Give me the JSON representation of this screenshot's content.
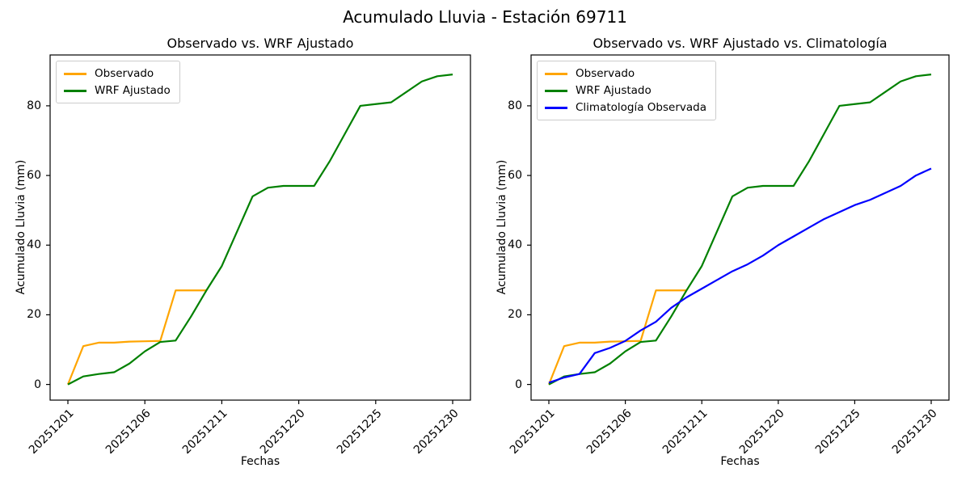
{
  "figure": {
    "title": "Acumulado Lluvia - Estación 69711"
  },
  "chart_data": [
    {
      "type": "line",
      "title": "Observado vs. WRF Ajustado",
      "xlabel": "Fechas",
      "ylabel": "Acumulado Lluvia (mm)",
      "x_ticks": [
        {
          "index": 0,
          "label": "20251201"
        },
        {
          "index": 5,
          "label": "20251206"
        },
        {
          "index": 10,
          "label": "20251211"
        },
        {
          "index": 15,
          "label": "20251220"
        },
        {
          "index": 20,
          "label": "20251225"
        },
        {
          "index": 25,
          "label": "20251230"
        }
      ],
      "y_ticks": [
        0,
        20,
        40,
        60,
        80
      ],
      "ylim": [
        -4.5,
        94.6
      ],
      "x_index_range": [
        0,
        25
      ],
      "grid": false,
      "legend_position": "upper-left",
      "series": [
        {
          "name": "Observado",
          "color": "#ffa500",
          "values": [
            0,
            11,
            12,
            12,
            12.3,
            12.4,
            12.5,
            27,
            27,
            27
          ]
        },
        {
          "name": "WRF Ajustado",
          "color": "#008000",
          "values": [
            0,
            2.3,
            3,
            3.5,
            6,
            9.5,
            12.2,
            12.6,
            19.5,
            27,
            34,
            44,
            54,
            56.5,
            57,
            57,
            57,
            64,
            72,
            80,
            80.5,
            81,
            84,
            87,
            88.5,
            89
          ]
        }
      ]
    },
    {
      "type": "line",
      "title": "Observado vs. WRF Ajustado vs. Climatología",
      "xlabel": "Fechas",
      "ylabel": "Acumulado Lluvia (mm)",
      "x_ticks": [
        {
          "index": 0,
          "label": "20251201"
        },
        {
          "index": 5,
          "label": "20251206"
        },
        {
          "index": 10,
          "label": "20251211"
        },
        {
          "index": 15,
          "label": "20251220"
        },
        {
          "index": 20,
          "label": "20251225"
        },
        {
          "index": 25,
          "label": "20251230"
        }
      ],
      "y_ticks": [
        0,
        20,
        40,
        60,
        80
      ],
      "ylim": [
        -4.5,
        94.6
      ],
      "x_index_range": [
        0,
        25
      ],
      "grid": false,
      "legend_position": "upper-left",
      "series": [
        {
          "name": "Observado",
          "color": "#ffa500",
          "values": [
            0,
            11,
            12,
            12,
            12.3,
            12.4,
            12.5,
            27,
            27,
            27
          ]
        },
        {
          "name": "WRF Ajustado",
          "color": "#008000",
          "values": [
            0,
            2.3,
            3,
            3.5,
            6,
            9.5,
            12.2,
            12.6,
            19.5,
            27,
            34,
            44,
            54,
            56.5,
            57,
            57,
            57,
            64,
            72,
            80,
            80.5,
            81,
            84,
            87,
            88.5,
            89
          ]
        },
        {
          "name": "Climatología Observada",
          "color": "#0000ff",
          "values": [
            0.5,
            2,
            3,
            9,
            10.5,
            12.5,
            15.5,
            18,
            22,
            25,
            27.5,
            30,
            32.5,
            34.5,
            37,
            40,
            42.5,
            45,
            47.5,
            49.5,
            51.5,
            53,
            55,
            57,
            60,
            62
          ]
        }
      ]
    }
  ]
}
